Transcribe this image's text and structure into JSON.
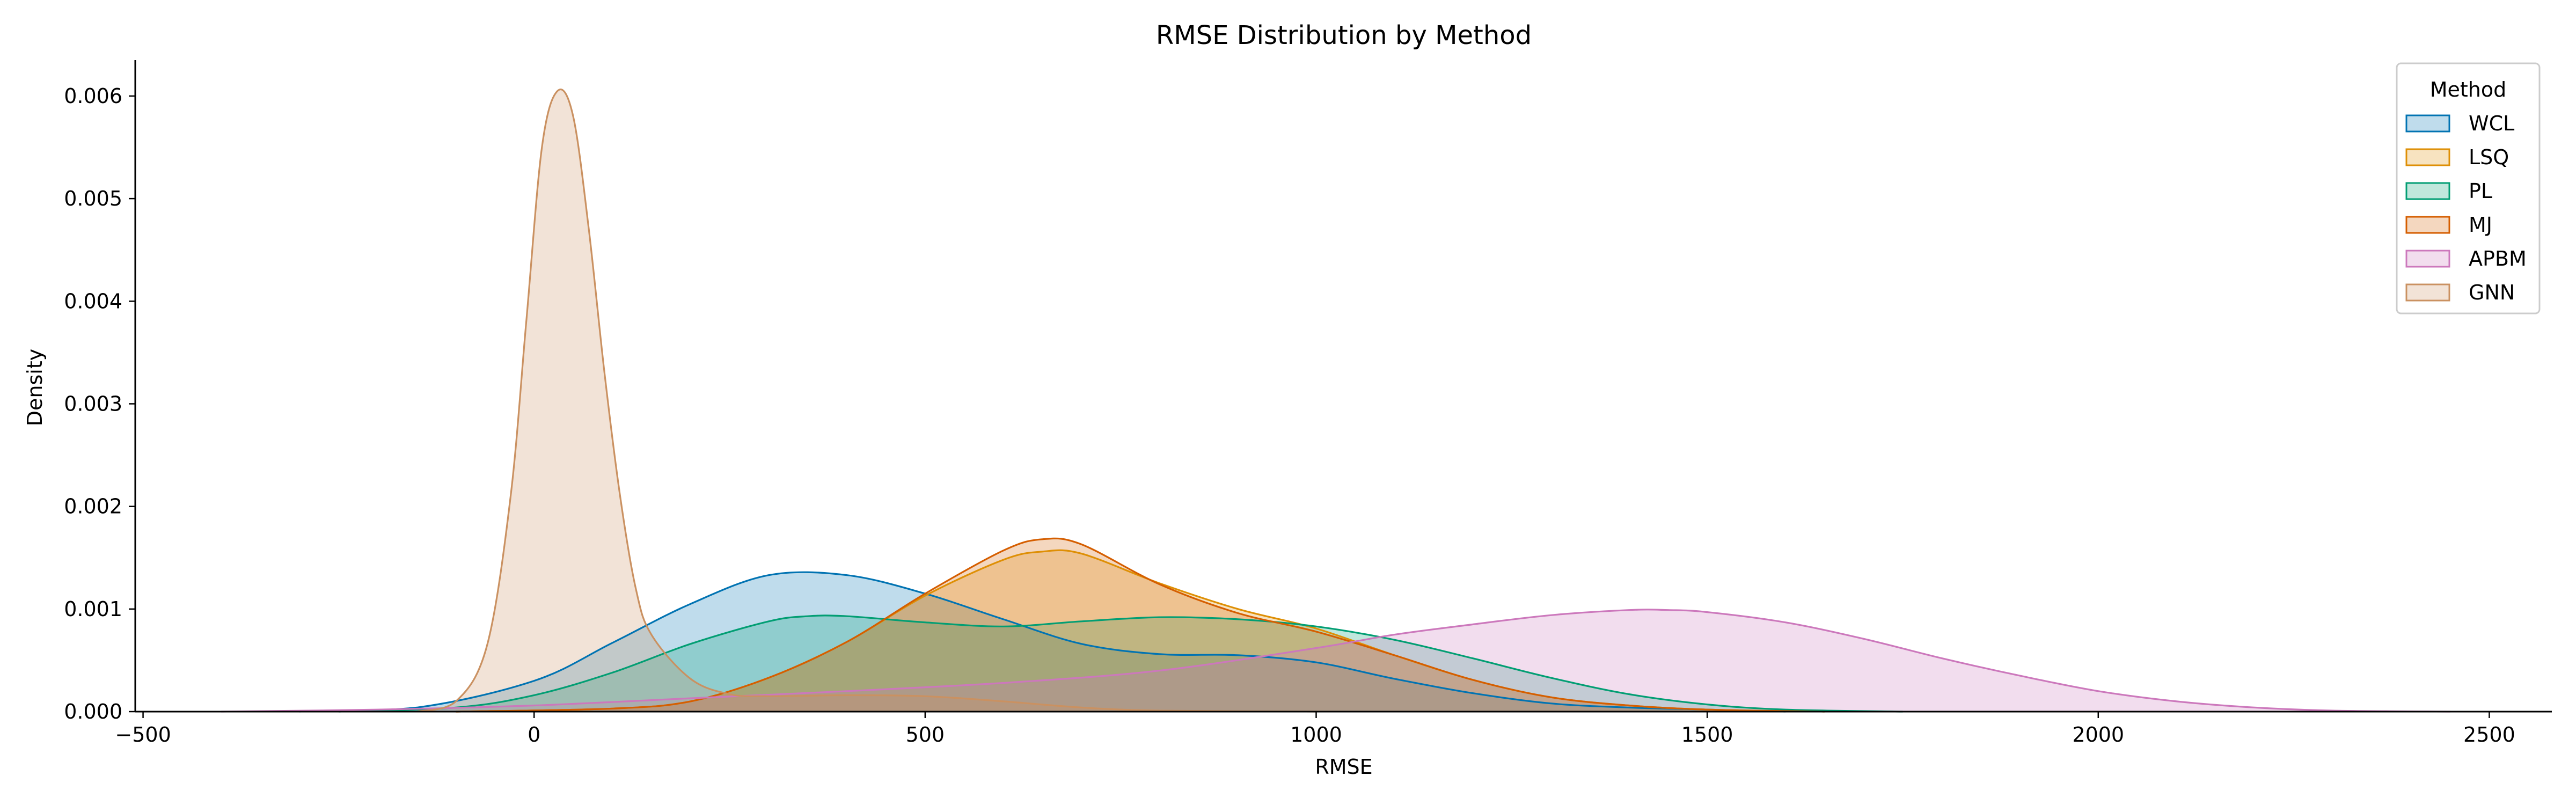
{
  "chart_data": {
    "type": "area",
    "title": "RMSE Distribution by Method",
    "xlabel": "RMSE",
    "ylabel": "Density",
    "xlim": [
      -510,
      2580
    ],
    "ylim": [
      0,
      0.00635
    ],
    "xticks": [
      -500,
      0,
      500,
      1000,
      1500,
      2000,
      2500
    ],
    "xtick_labels": [
      "−500",
      "0",
      "500",
      "1000",
      "1500",
      "2000",
      "2500"
    ],
    "yticks": [
      0,
      0.001,
      0.002,
      0.003,
      0.004,
      0.005,
      0.006
    ],
    "ytick_labels": [
      "0.000",
      "0.001",
      "0.002",
      "0.003",
      "0.004",
      "0.005",
      "0.006"
    ],
    "grid": false,
    "legend": {
      "title": "Method",
      "position": "top-right"
    },
    "series": [
      {
        "name": "WCL",
        "color": "#0173b2",
        "x": [
          -300,
          -150,
          0,
          100,
          200,
          300,
          400,
          500,
          600,
          700,
          800,
          900,
          1000,
          1100,
          1200,
          1300,
          1400,
          1500,
          1600
        ],
        "y": [
          0.0,
          4e-05,
          0.0003,
          0.00067,
          0.00105,
          0.00133,
          0.00133,
          0.00115,
          0.0009,
          0.00066,
          0.00056,
          0.00055,
          0.00048,
          0.00032,
          0.00018,
          8e-05,
          4e-05,
          2e-05,
          0.0
        ]
      },
      {
        "name": "LSQ",
        "color": "#de8f05",
        "x": [
          -100,
          100,
          200,
          300,
          400,
          500,
          600,
          650,
          700,
          800,
          900,
          1000,
          1100,
          1200,
          1300,
          1400,
          1500,
          1650
        ],
        "y": [
          0.0,
          3e-05,
          0.0001,
          0.00033,
          0.00068,
          0.00113,
          0.00148,
          0.00156,
          0.00154,
          0.00125,
          0.001,
          0.00081,
          0.00055,
          0.00031,
          0.00014,
          6e-05,
          2e-05,
          0.0
        ]
      },
      {
        "name": "PL",
        "color": "#029e73",
        "x": [
          -250,
          -100,
          0,
          100,
          200,
          300,
          350,
          400,
          500,
          600,
          700,
          800,
          900,
          1000,
          1100,
          1200,
          1300,
          1400,
          1500,
          1600,
          1750
        ],
        "y": [
          0.0,
          4e-05,
          0.00016,
          0.00038,
          0.00066,
          0.00088,
          0.00093,
          0.00093,
          0.00087,
          0.00083,
          0.00088,
          0.00092,
          0.0009,
          0.00083,
          0.0007,
          0.00052,
          0.00033,
          0.00017,
          7e-05,
          2e-05,
          0.0
        ]
      },
      {
        "name": "MJ",
        "color": "#d55e00",
        "x": [
          -100,
          100,
          200,
          300,
          400,
          500,
          600,
          650,
          700,
          800,
          900,
          1000,
          1100,
          1200,
          1300,
          1400,
          1500,
          1650
        ],
        "y": [
          0.0,
          3e-05,
          0.0001,
          0.00033,
          0.00068,
          0.00115,
          0.00157,
          0.00168,
          0.00163,
          0.00124,
          0.00096,
          0.00078,
          0.00055,
          0.00031,
          0.00014,
          6e-05,
          2e-05,
          0.0
        ]
      },
      {
        "name": "APBM",
        "color": "#cc78bc",
        "x": [
          -400,
          -200,
          0,
          200,
          400,
          600,
          800,
          1000,
          1100,
          1200,
          1300,
          1400,
          1450,
          1500,
          1600,
          1700,
          1800,
          1900,
          2000,
          2100,
          2200,
          2300,
          2450
        ],
        "y": [
          0.0,
          2e-05,
          6e-05,
          0.00013,
          0.0002,
          0.00028,
          0.0004,
          0.00062,
          0.00075,
          0.00085,
          0.00094,
          0.00099,
          0.00099,
          0.00097,
          0.00087,
          0.00071,
          0.00052,
          0.00035,
          0.0002,
          0.0001,
          4e-05,
          1e-05,
          0.0
        ]
      },
      {
        "name": "GNN",
        "color": "#ca9161",
        "x": [
          -150,
          -100,
          -60,
          -30,
          -10,
          10,
          30,
          50,
          70,
          90,
          110,
          130,
          150,
          200,
          250,
          300,
          400,
          500,
          600,
          700,
          800,
          1000
        ],
        "y": [
          0.0,
          0.0001,
          0.00065,
          0.0021,
          0.0038,
          0.0055,
          0.00605,
          0.0058,
          0.0047,
          0.0033,
          0.0021,
          0.0012,
          0.00075,
          0.00032,
          0.00017,
          0.00015,
          0.00016,
          0.00015,
          0.0001,
          4e-05,
          1e-05,
          0.0
        ]
      }
    ]
  }
}
